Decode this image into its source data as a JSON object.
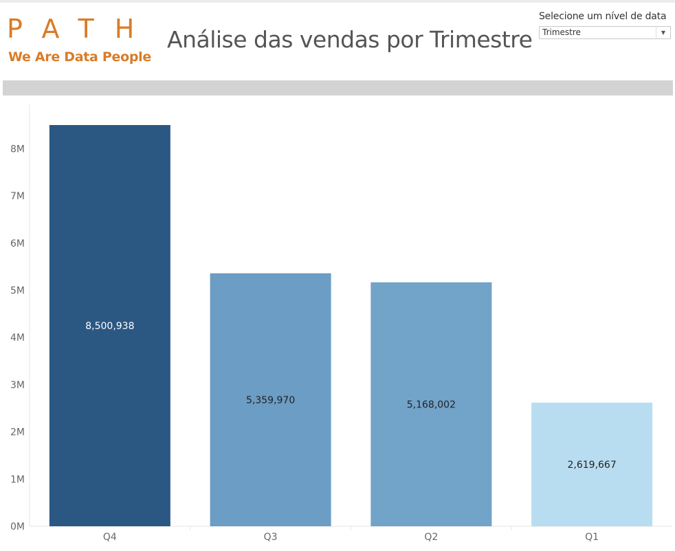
{
  "logo": {
    "word": "PATH",
    "tagline": "We Are Data People"
  },
  "title": "Análise das vendas por Trimestre",
  "filter": {
    "label": "Selecione um nível de data",
    "selected": "Trimestre"
  },
  "colors": {
    "logo": "#d97c27",
    "band": "#d3d3d3"
  },
  "chart_data": {
    "type": "bar",
    "categories": [
      "Q4",
      "Q3",
      "Q2",
      "Q1"
    ],
    "values": [
      8500938,
      5359970,
      5168002,
      2619667
    ],
    "data_labels": [
      "8,500,938",
      "5,359,970",
      "5,168,002",
      "2,619,667"
    ],
    "bar_colors": [
      "#2b5783",
      "#6b9dc5",
      "#72a3c9",
      "#b9ddf0"
    ],
    "label_colors": [
      "#ffffff",
      "#222222",
      "#222222",
      "#222222"
    ],
    "y_ticks": [
      0,
      1000000,
      2000000,
      3000000,
      4000000,
      5000000,
      6000000,
      7000000,
      8000000
    ],
    "y_tick_labels": [
      "0M",
      "1M",
      "2M",
      "3M",
      "4M",
      "5M",
      "6M",
      "7M",
      "8M"
    ],
    "ylim": [
      0,
      8900000
    ],
    "grid": false,
    "title": "",
    "xlabel": "",
    "ylabel": ""
  }
}
